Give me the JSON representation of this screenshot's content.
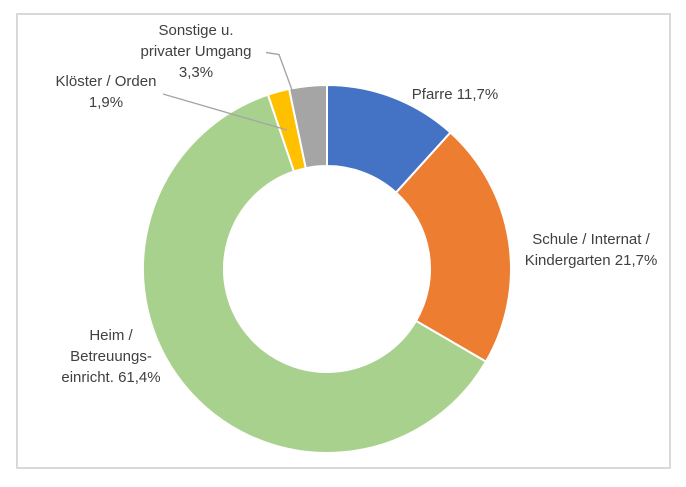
{
  "chart_data": {
    "type": "pie",
    "subtype": "donut",
    "title": "",
    "legend_position": "none",
    "labels_position": "outside-end",
    "donut_hole_ratio": 0.56,
    "start_angle_deg": 0,
    "direction": "clockwise",
    "background_color": "#FFFFFF",
    "frame_border_color": "#D9D9D9",
    "label_text_color": "#404040",
    "leader_line_color": "#A6A6A6",
    "segment_border_color": "#FFFFFF",
    "segments": [
      {
        "id": "pfarre",
        "label": "Pfarre",
        "value": 11.7,
        "display_value": "11,7%",
        "color": "#4472C4",
        "lines": [
          "Pfarre 11,7%"
        ]
      },
      {
        "id": "schule-internat-kindergarten",
        "label": "Schule / Internat / Kindergarten",
        "value": 21.7,
        "display_value": "21,7%",
        "color": "#ED7D31",
        "lines": [
          "Schule / Internat /",
          "Kindergarten 21,7%"
        ]
      },
      {
        "id": "heim-betreuungseinricht",
        "label": "Heim / Betreuungseinricht.",
        "value": 61.4,
        "display_value": "61,4%",
        "color": "#A9D18E",
        "lines": [
          "Heim /",
          "Betreuungs-",
          "einricht. 61,4%"
        ]
      },
      {
        "id": "kloester-orden",
        "label": "Klöster / Orden",
        "value": 1.9,
        "display_value": "1,9%",
        "color": "#FFC000",
        "lines": [
          "Klöster / Orden",
          "1,9%"
        ]
      },
      {
        "id": "sonstige-privater-umgang",
        "label": "Sonstige u. privater Umgang",
        "value": 3.3,
        "display_value": "3,3%",
        "color": "#A5A5A5",
        "lines": [
          "Sonstige u.",
          "privater Umgang",
          "3,3%"
        ]
      }
    ]
  }
}
